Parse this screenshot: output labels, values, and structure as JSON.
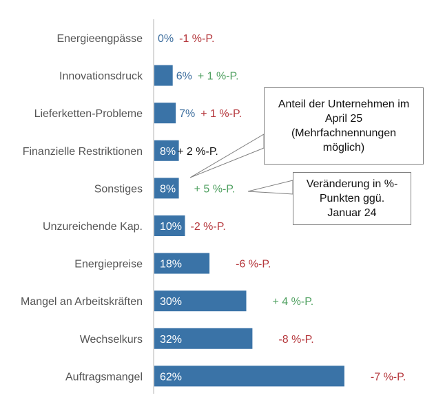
{
  "chart_data": {
    "type": "bar",
    "orientation": "horizontal",
    "categories": [
      "Energieengpässe",
      "Innovationsdruck",
      "Lieferketten-Probleme",
      "Finanzielle Restriktionen",
      "Sonstiges",
      "Unzureichende Kap.",
      "Energiepreise",
      "Mangel an Arbeitskräften",
      "Wechselkurs",
      "Auftragsmangel"
    ],
    "values": [
      0,
      6,
      7,
      8,
      8,
      10,
      18,
      30,
      32,
      62
    ],
    "value_labels": [
      "0%",
      "6%",
      "7%",
      "8%",
      "8%",
      "10%",
      "18%",
      "30%",
      "32%",
      "62%"
    ],
    "change_labels": [
      "-1 %-P.",
      "+ 1 %-P.",
      "+ 1 %-P.",
      "+ 2 %-P.",
      "+ 5 %-P.",
      "-2 %-P.",
      "-6 %-P.",
      "+ 4 %-P.",
      "-8 %-P.",
      "-7 %-P."
    ],
    "change_colors": [
      "#b5373c",
      "#4fa060",
      "#b5373c",
      "#111111",
      "#4fa060",
      "#b5373c",
      "#b5373c",
      "#4fa060",
      "#b5373c",
      "#b5373c"
    ],
    "xlim": [
      0,
      70
    ],
    "grid": false,
    "colors": {
      "bar": "#3a73a7",
      "label_outside": "#3d6e9e",
      "label_inside": "#ffffff",
      "category": "#555555"
    }
  },
  "annotations": {
    "share": "Anteil der Unternehmen im April 25 (Mehrfachnennungen möglich)",
    "change": "Veränderung in %-Punkten ggü. Januar 24"
  }
}
